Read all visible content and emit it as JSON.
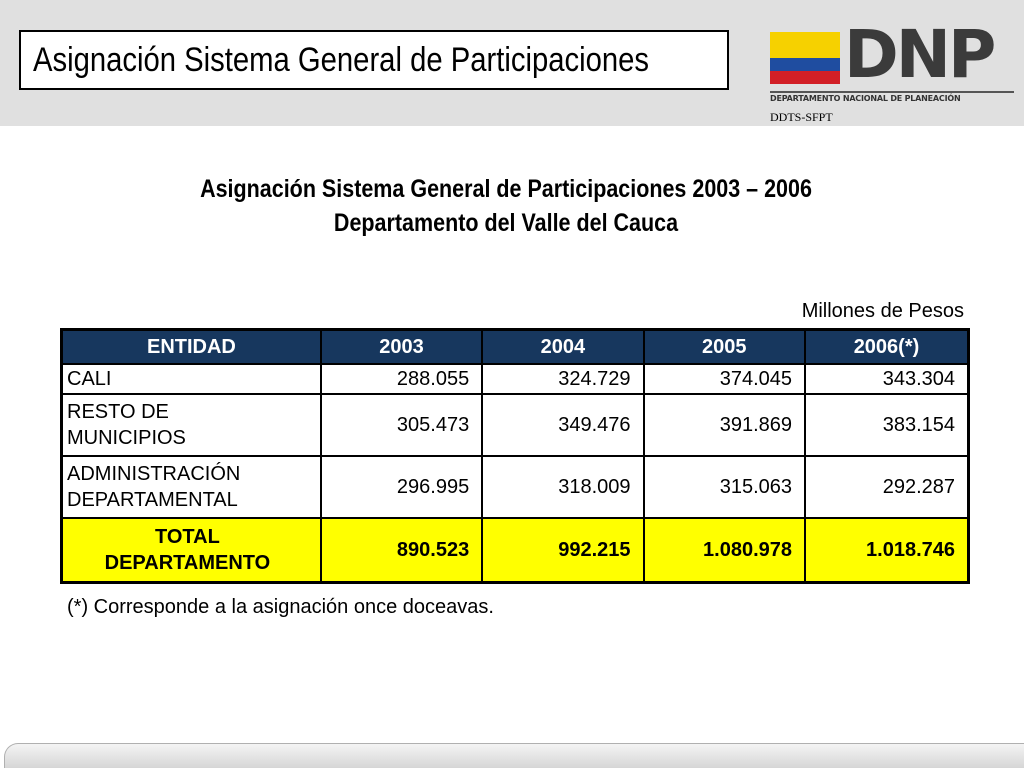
{
  "header": {
    "title": "Asignación Sistema General de Participaciones"
  },
  "logo": {
    "word": "DNP",
    "subtitle": "DEPARTAMENTO NACIONAL DE PLANEACIÓN",
    "flag_colors": [
      "#f6d100",
      "#1f4da0",
      "#d21f26"
    ]
  },
  "dept_code": "DDTS-SFPT",
  "main": {
    "title_line1": "Asignación Sistema General de Participaciones 2003 – 2006",
    "title_line2": "Departamento del Valle del Cauca",
    "units": "Millones de Pesos"
  },
  "table": {
    "headers": [
      "ENTIDAD",
      "2003",
      "2004",
      "2005",
      "2006(*)"
    ],
    "rows": [
      {
        "entity": "CALI",
        "values": [
          "288.055",
          "324.729",
          "374.045",
          "343.304"
        ]
      },
      {
        "entity_line1": "RESTO DE",
        "entity_line2": "MUNICIPIOS",
        "values": [
          "305.473",
          "349.476",
          "391.869",
          "383.154"
        ]
      },
      {
        "entity_line1": "ADMINISTRACIÓN",
        "entity_line2": "DEPARTAMENTAL",
        "values": [
          "296.995",
          "318.009",
          "315.063",
          "292.287"
        ]
      }
    ],
    "total": {
      "label_line1": "TOTAL",
      "label_line2": "DEPARTAMENTO",
      "values": [
        "890.523",
        "992.215",
        "1.080.978",
        "1.018.746"
      ]
    },
    "header_color": "#17375e",
    "total_color": "#ffff00"
  },
  "footnote": "(*) Corresponde a la asignación once doceavas."
}
